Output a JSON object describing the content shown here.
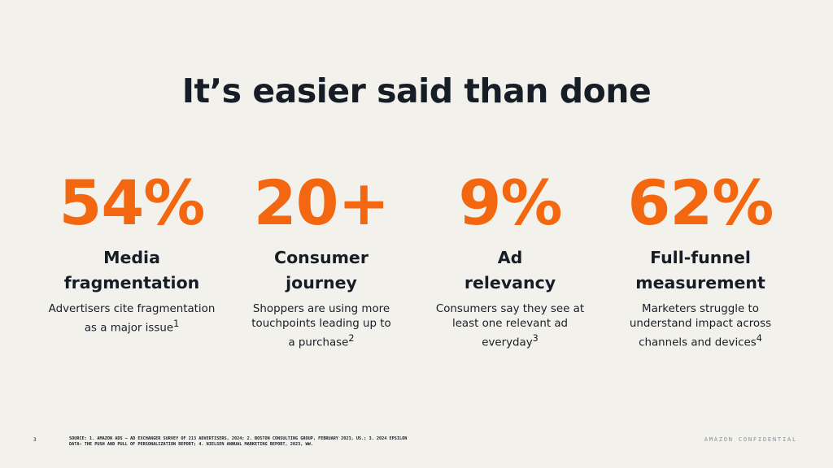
{
  "slide": {
    "title": "It’s easier said than done",
    "page_number": "3",
    "source": "SOURCE: 1. AMAZON ADS – AD EXCHANGER SURVEY OF 213 ADVERTISERS, 2024; 2. BOSTON CONSULTING GROUP, FEBRUARY 2023, US.; 3. 2024 EPSILON DATA: THE PUSH AND PULL OF PERSONALIZATION REPORT; 4. NIELSEN ANNUAL MARKETING REPORT, 2023, WW.",
    "confidential": "AMAZON CONFIDENTIAL"
  },
  "stats": [
    {
      "value": "54%",
      "title_line1": "Media",
      "title_line2": "fragmentation",
      "desc_line1": "Advertisers cite fragmentation",
      "desc_line2": "as a major issue",
      "desc_line3": "",
      "footnote": "1"
    },
    {
      "value": "20+",
      "title_line1": "Consumer",
      "title_line2": "journey",
      "desc_line1": "Shoppers are using more",
      "desc_line2": "touchpoints leading up to",
      "desc_line3": "a purchase",
      "footnote": "2"
    },
    {
      "value": "9%",
      "title_line1": "Ad",
      "title_line2": "relevancy",
      "desc_line1": "Consumers say they see at",
      "desc_line2": "least one relevant ad",
      "desc_line3": "everyday",
      "footnote": "3"
    },
    {
      "value": "62%",
      "title_line1": "Full-funnel",
      "title_line2": "measurement",
      "desc_line1": "Marketers struggle to",
      "desc_line2": "understand impact across",
      "desc_line3": "channels and devices",
      "footnote": "4"
    }
  ],
  "colors": {
    "accent": "#f2670f",
    "text": "#161d26",
    "background": "#f3f1ec",
    "muted": "#8b8f94"
  }
}
